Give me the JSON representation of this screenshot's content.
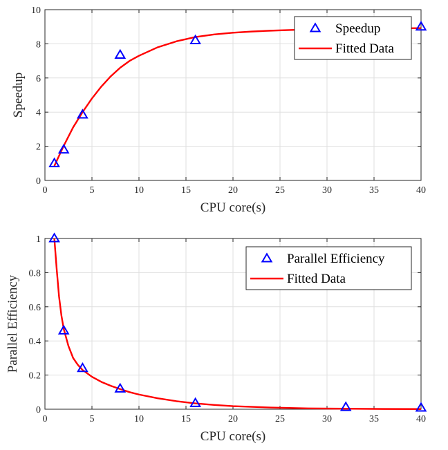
{
  "chart_data": [
    {
      "type": "scatter",
      "xlabel": "CPU core(s)",
      "ylabel": "Speedup",
      "xlim": [
        0,
        40
      ],
      "ylim": [
        0,
        10
      ],
      "xticks": [
        "0",
        "5",
        "10",
        "15",
        "20",
        "25",
        "30",
        "35",
        "40"
      ],
      "yticks": [
        "0",
        "2",
        "4",
        "6",
        "8",
        "10"
      ],
      "grid": true,
      "legend_position": "top-right",
      "series": [
        {
          "name": "Speedup",
          "kind": "markers",
          "marker": "triangle",
          "color": "#0000ff",
          "x": [
            1,
            2,
            4,
            8,
            16,
            40
          ],
          "y": [
            1.0,
            1.8,
            3.85,
            7.35,
            8.2,
            9.0
          ]
        },
        {
          "name": "Fitted Data",
          "kind": "line",
          "color": "#ff0000",
          "x": [
            1,
            2,
            3,
            4,
            5,
            6,
            7,
            8,
            9,
            10,
            12,
            14,
            16,
            18,
            20,
            22,
            24,
            26,
            28,
            30,
            32,
            34,
            36,
            38,
            40
          ],
          "y": [
            0.85,
            2.03,
            3.11,
            4.0,
            4.8,
            5.5,
            6.1,
            6.6,
            7.0,
            7.3,
            7.8,
            8.15,
            8.4,
            8.55,
            8.65,
            8.72,
            8.77,
            8.81,
            8.84,
            8.86,
            8.88,
            8.89,
            8.9,
            8.91,
            8.92
          ]
        }
      ]
    },
    {
      "type": "scatter",
      "xlabel": "CPU core(s)",
      "ylabel": "Parallel Efficiency",
      "xlim": [
        0,
        40
      ],
      "ylim": [
        0,
        1
      ],
      "xticks": [
        "0",
        "5",
        "10",
        "15",
        "20",
        "25",
        "30",
        "35",
        "40"
      ],
      "yticks": [
        "0",
        "0.2",
        "0.4",
        "0.6",
        "0.8",
        "1"
      ],
      "grid": true,
      "legend_position": "top-right",
      "series": [
        {
          "name": "Parallel Efficiency",
          "kind": "markers",
          "marker": "triangle",
          "color": "#0000ff",
          "x": [
            1,
            2,
            4,
            8,
            16,
            32,
            40
          ],
          "y": [
            1.0,
            0.46,
            0.24,
            0.12,
            0.035,
            0.012,
            0.008
          ]
        },
        {
          "name": "Fitted Data",
          "kind": "line",
          "color": "#ff0000",
          "x": [
            1,
            1.25,
            1.5,
            1.75,
            2,
            2.5,
            3,
            3.5,
            4,
            5,
            6,
            7,
            8,
            9,
            10,
            12,
            14,
            16,
            18,
            20,
            24,
            28,
            32,
            36,
            40
          ],
          "y": [
            1.0,
            0.82,
            0.66,
            0.55,
            0.47,
            0.37,
            0.3,
            0.26,
            0.23,
            0.19,
            0.16,
            0.137,
            0.118,
            0.1,
            0.086,
            0.064,
            0.047,
            0.034,
            0.025,
            0.018,
            0.01,
            0.005,
            0.003,
            0.0015,
            0.001
          ]
        }
      ]
    }
  ]
}
